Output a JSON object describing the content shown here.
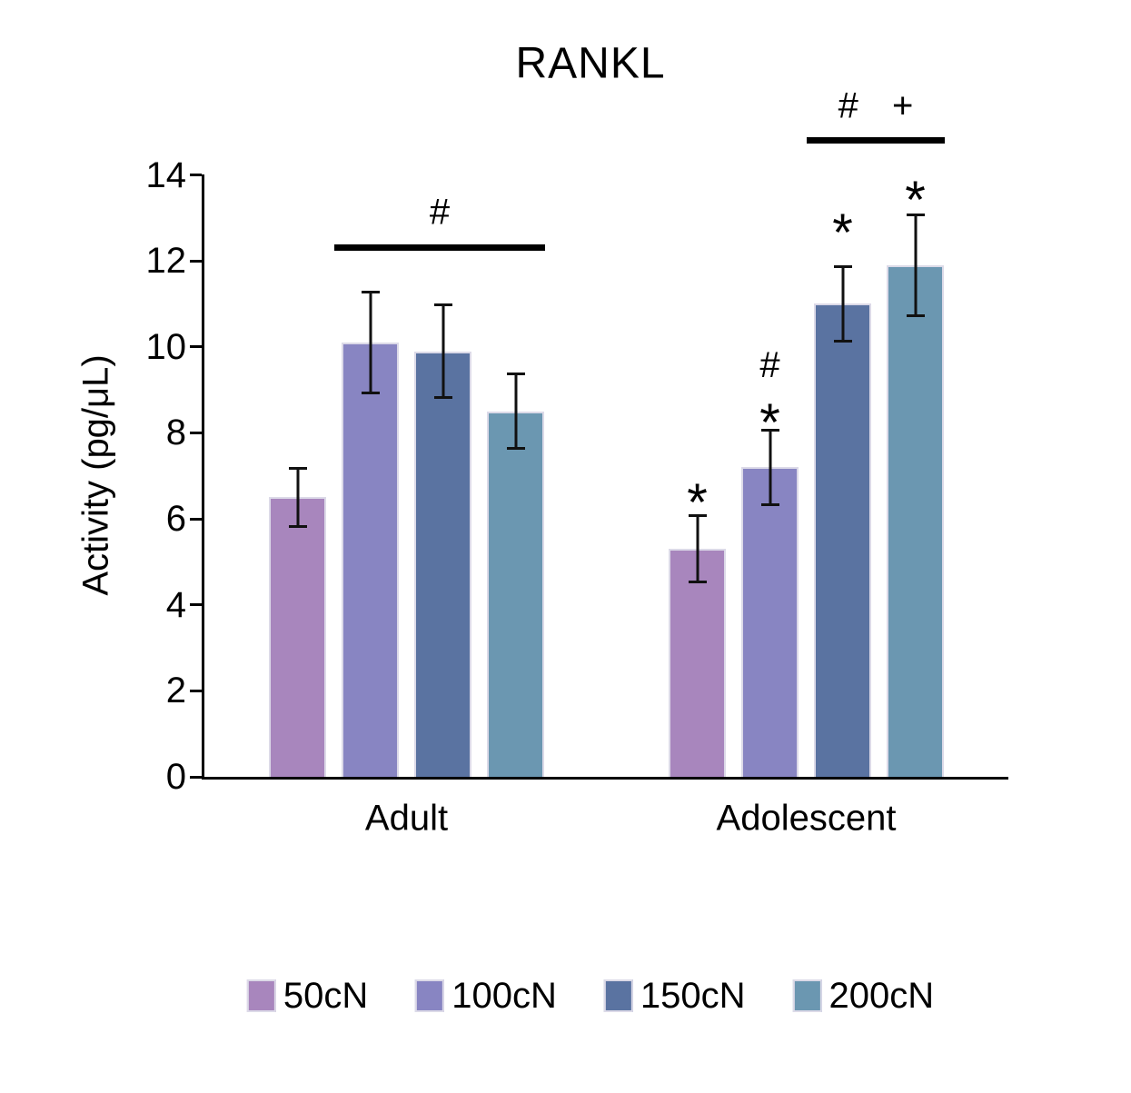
{
  "chart_data": {
    "type": "bar",
    "title": "RANKL",
    "ylabel": "Activity (pg/μL)",
    "xlabel": "",
    "ylim": [
      0,
      14
    ],
    "yticks": [
      0,
      2,
      4,
      6,
      8,
      10,
      12,
      14
    ],
    "grid": false,
    "legend_position": "bottom",
    "categories": [
      "Adult",
      "Adolescent"
    ],
    "series": [
      {
        "name": "50cN",
        "color": "#a886bd",
        "values": [
          6.5,
          5.3
        ],
        "errors": [
          0.7,
          0.8
        ]
      },
      {
        "name": "100cN",
        "color": "#8885c2",
        "values": [
          10.1,
          7.2
        ],
        "errors": [
          1.2,
          0.9
        ]
      },
      {
        "name": "150cN",
        "color": "#5a73a1",
        "values": [
          9.9,
          11.0
        ],
        "errors": [
          1.1,
          0.9
        ]
      },
      {
        "name": "200cN",
        "color": "#6b97b1",
        "values": [
          8.5,
          11.9
        ],
        "errors": [
          0.9,
          1.2
        ]
      }
    ],
    "bar_markers": [
      {
        "group": 1,
        "series": 0,
        "symbols": [
          {
            "text": "*",
            "y": 6.66
          }
        ]
      },
      {
        "group": 1,
        "series": 1,
        "symbols": [
          {
            "text": "*",
            "y": 8.52
          },
          {
            "text": "#",
            "y": 9.57
          }
        ]
      },
      {
        "group": 1,
        "series": 2,
        "symbols": [
          {
            "text": "*",
            "y": 12.93
          }
        ]
      },
      {
        "group": 1,
        "series": 3,
        "symbols": [
          {
            "text": "*",
            "y": 13.7
          }
        ]
      }
    ],
    "sig_lines": [
      {
        "group": 0,
        "from_series": 1,
        "to_series": 3,
        "label": "#",
        "y_value": 12.32
      },
      {
        "group": 1,
        "from_series": 2,
        "to_series": 3,
        "label": "# +",
        "y_value": 14.8
      }
    ],
    "legend": [
      "50cN",
      "100cN",
      "150cN",
      "200cN"
    ],
    "axis_color": "#000000",
    "error_bar_color": "#111111"
  }
}
